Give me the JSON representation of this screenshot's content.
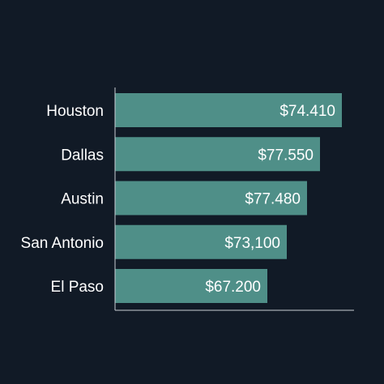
{
  "chart_data": {
    "type": "bar",
    "orientation": "horizontal",
    "categories": [
      "Houston",
      "Dallas",
      "Austin",
      "San Antonio",
      "El Paso"
    ],
    "values": [
      74410,
      77550,
      77480,
      73100,
      67200
    ],
    "value_labels": [
      "$74.410",
      "$77.550",
      "$77.480",
      "$73,100",
      "$67.200"
    ],
    "title": "",
    "xlabel": "",
    "ylabel": "",
    "grid": false,
    "legend": "none"
  },
  "colors": {
    "background": "#111a26",
    "bar": "#4f8f88",
    "axis": "#c9ced4",
    "text": "#ffffff"
  }
}
